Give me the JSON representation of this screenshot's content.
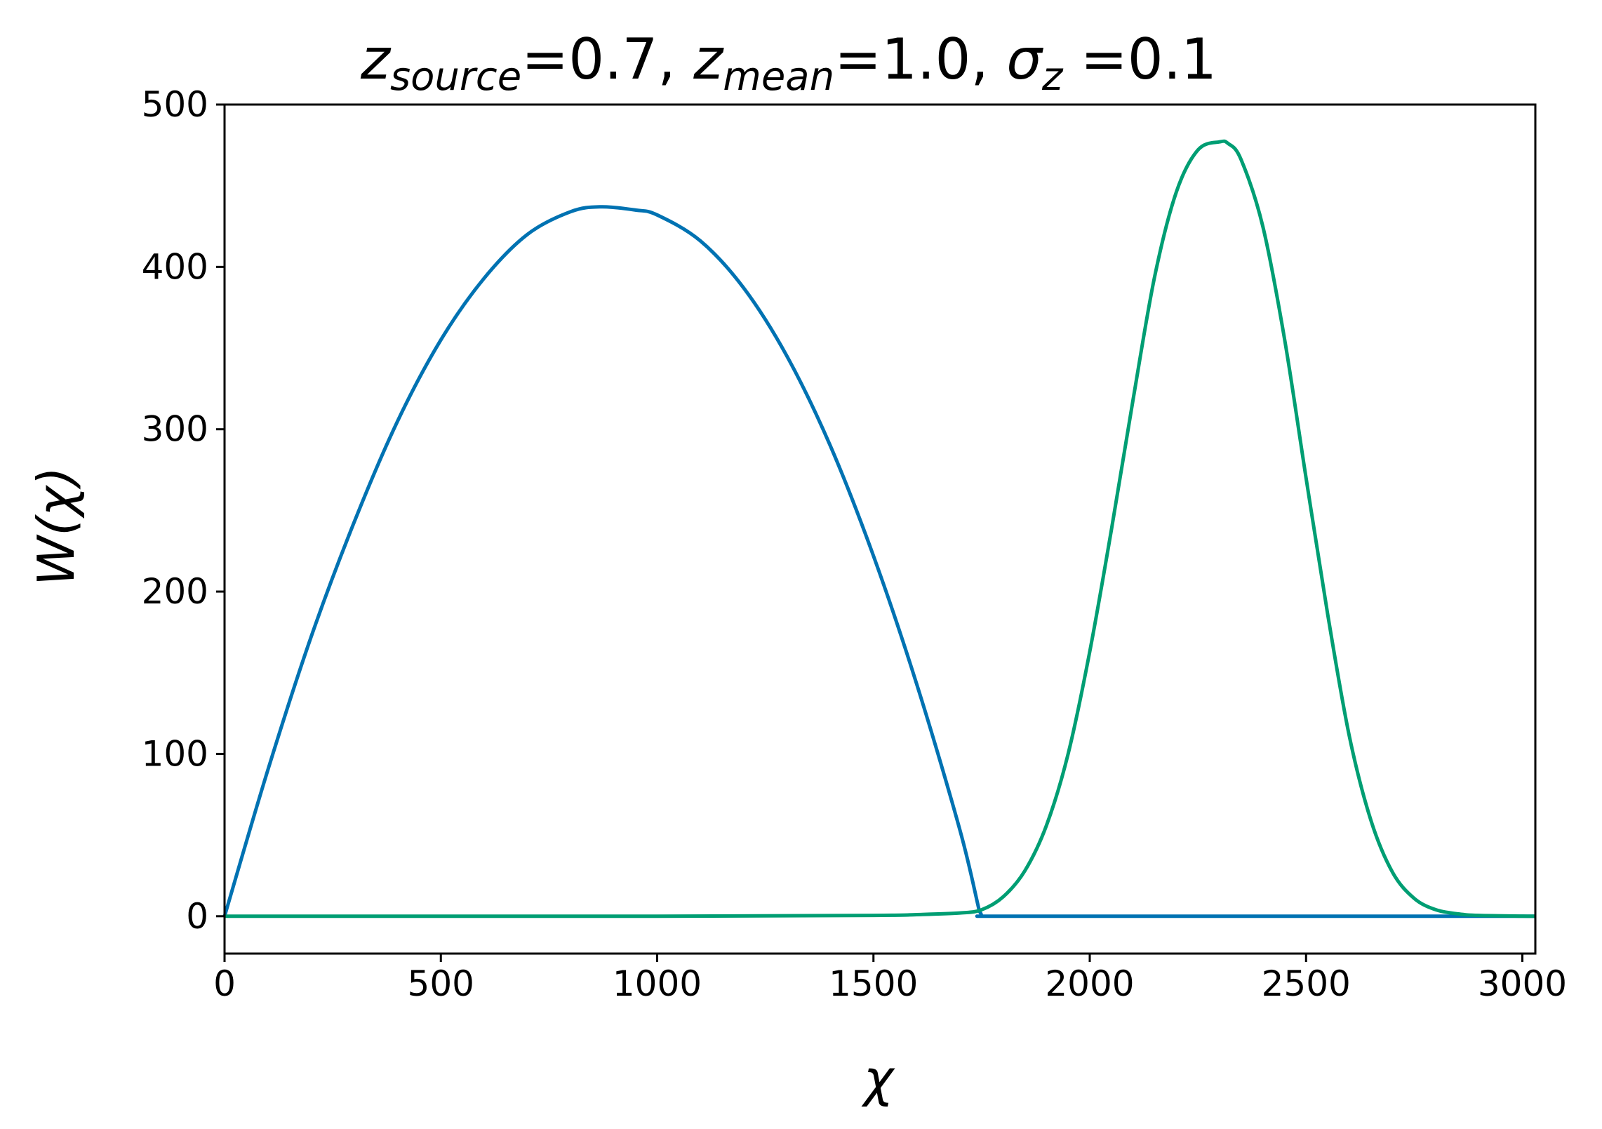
{
  "chart_data": {
    "type": "line",
    "title": {
      "z_source_sym": "z",
      "z_source_sub": "source",
      "z_source_val": "=0.7, ",
      "z_mean_sym": "z",
      "z_mean_sub": "mean",
      "z_mean_val": "=1.0, ",
      "sigma_sym": "σ",
      "sigma_sub": "z",
      "sigma_val": " =0.1"
    },
    "xlabel": "χ",
    "ylabel": "W(χ)",
    "xlim": [
      0,
      3030
    ],
    "ylim": [
      -23,
      500
    ],
    "xticks": [
      0,
      500,
      1000,
      1500,
      2000,
      2500,
      3000
    ],
    "yticks": [
      0,
      100,
      200,
      300,
      400,
      500
    ],
    "grid": false,
    "series": [
      {
        "color": "#0072b2",
        "x": [
          0,
          100,
          200,
          300,
          400,
          500,
          600,
          700,
          800,
          870,
          950,
          1000,
          1100,
          1200,
          1300,
          1400,
          1500,
          1600,
          1700,
          1745,
          1750,
          1760,
          2000,
          2500,
          3030
        ],
        "y": [
          0,
          90,
          172,
          243,
          305,
          355,
          393,
          420,
          434,
          437,
          435,
          432,
          416,
          387,
          345,
          290,
          222,
          143,
          53,
          3,
          0,
          0,
          0,
          0,
          0
        ]
      },
      {
        "color": "#009e73",
        "x": [
          0,
          1000,
          1500,
          1600,
          1700,
          1750,
          1800,
          1850,
          1900,
          1950,
          2000,
          2050,
          2100,
          2150,
          2200,
          2250,
          2300,
          2320,
          2350,
          2400,
          2450,
          2500,
          2550,
          2600,
          2650,
          2700,
          2750,
          2800,
          2850,
          2900,
          3030
        ],
        "y": [
          0,
          0,
          0.5,
          1,
          2,
          4,
          12,
          28,
          56,
          100,
          163,
          238,
          318,
          394,
          446,
          472,
          477,
          476,
          466,
          425,
          356,
          270,
          186,
          111,
          59,
          27,
          11,
          4,
          1.5,
          0.5,
          0
        ]
      }
    ]
  }
}
